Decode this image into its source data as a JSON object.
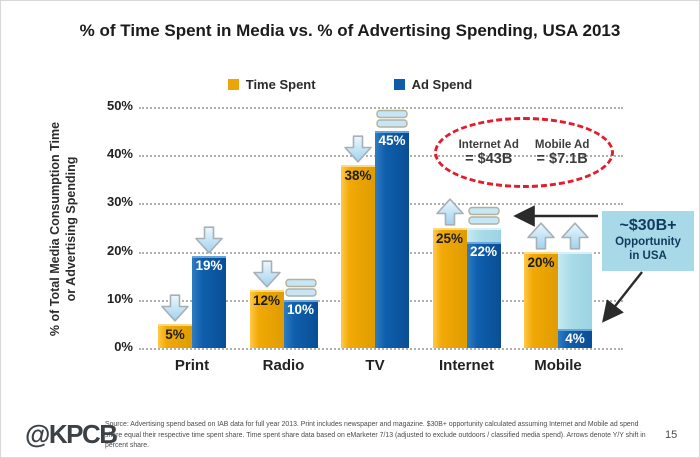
{
  "slide": {
    "logo": "@KPCB",
    "page_number": "15",
    "source_text": "Source: Advertising spend based on IAB data for full year 2013. Print includes newspaper and magazine. $30B+ opportunity calculated assuming Internet and Mobile ad spend share equal their respective time spent share. Time spent share data based on eMarketer 7/13 (adjusted to exclude outdoors / classified media spend). Arrows denote Y/Y shift in percent share."
  },
  "legend": {
    "items": [
      {
        "label": "Time Spent",
        "color": "#EDA408"
      },
      {
        "label": "Ad Spend",
        "color": "#0E5DA8"
      }
    ]
  },
  "y_axis": {
    "title_line1": "% of Total Media Consumption Time",
    "title_line2": "or Advertising Spending"
  },
  "chart_data": {
    "type": "bar",
    "title": "% of Time Spent in Media vs. % of Advertising Spending, USA 2013",
    "categories": [
      "Print",
      "Radio",
      "TV",
      "Internet",
      "Mobile"
    ],
    "series": [
      {
        "name": "Time Spent",
        "color": "#EDA408",
        "values": [
          5,
          12,
          38,
          25,
          20
        ],
        "yoy_trend": [
          "down",
          "down",
          "down",
          "up",
          "up"
        ]
      },
      {
        "name": "Ad Spend",
        "color": "#0E5DA8",
        "values": [
          19,
          10,
          45,
          22,
          4
        ],
        "yoy_trend": [
          "down",
          "flat",
          "flat",
          "flat",
          "up"
        ],
        "opportunity_fill_to": [
          null,
          null,
          null,
          25,
          20
        ]
      }
    ],
    "ylabel": "% of Total Media Consumption Time or Advertising Spending",
    "ylim": [
      0,
      50
    ],
    "yticks": [
      "0%",
      "10%",
      "20%",
      "30%",
      "40%",
      "50%"
    ],
    "grid": true,
    "legend_position": "top"
  },
  "annotations": {
    "ad_values_callout": {
      "items": [
        {
          "label": "Internet Ad",
          "value": "= $43B"
        },
        {
          "label": "Mobile Ad",
          "value": "= $7.1B"
        }
      ]
    },
    "opportunity_note": {
      "line1": "~$30B+",
      "line2": "Opportunity",
      "line3": "in USA"
    }
  },
  "colors": {
    "gold": "#EDA408",
    "blue": "#0E5DA8",
    "light_blue": "#A9DBE8",
    "callout_red": "#E41B2D",
    "note_bg": "#A7D9E8",
    "note_text": "#123A5E"
  }
}
